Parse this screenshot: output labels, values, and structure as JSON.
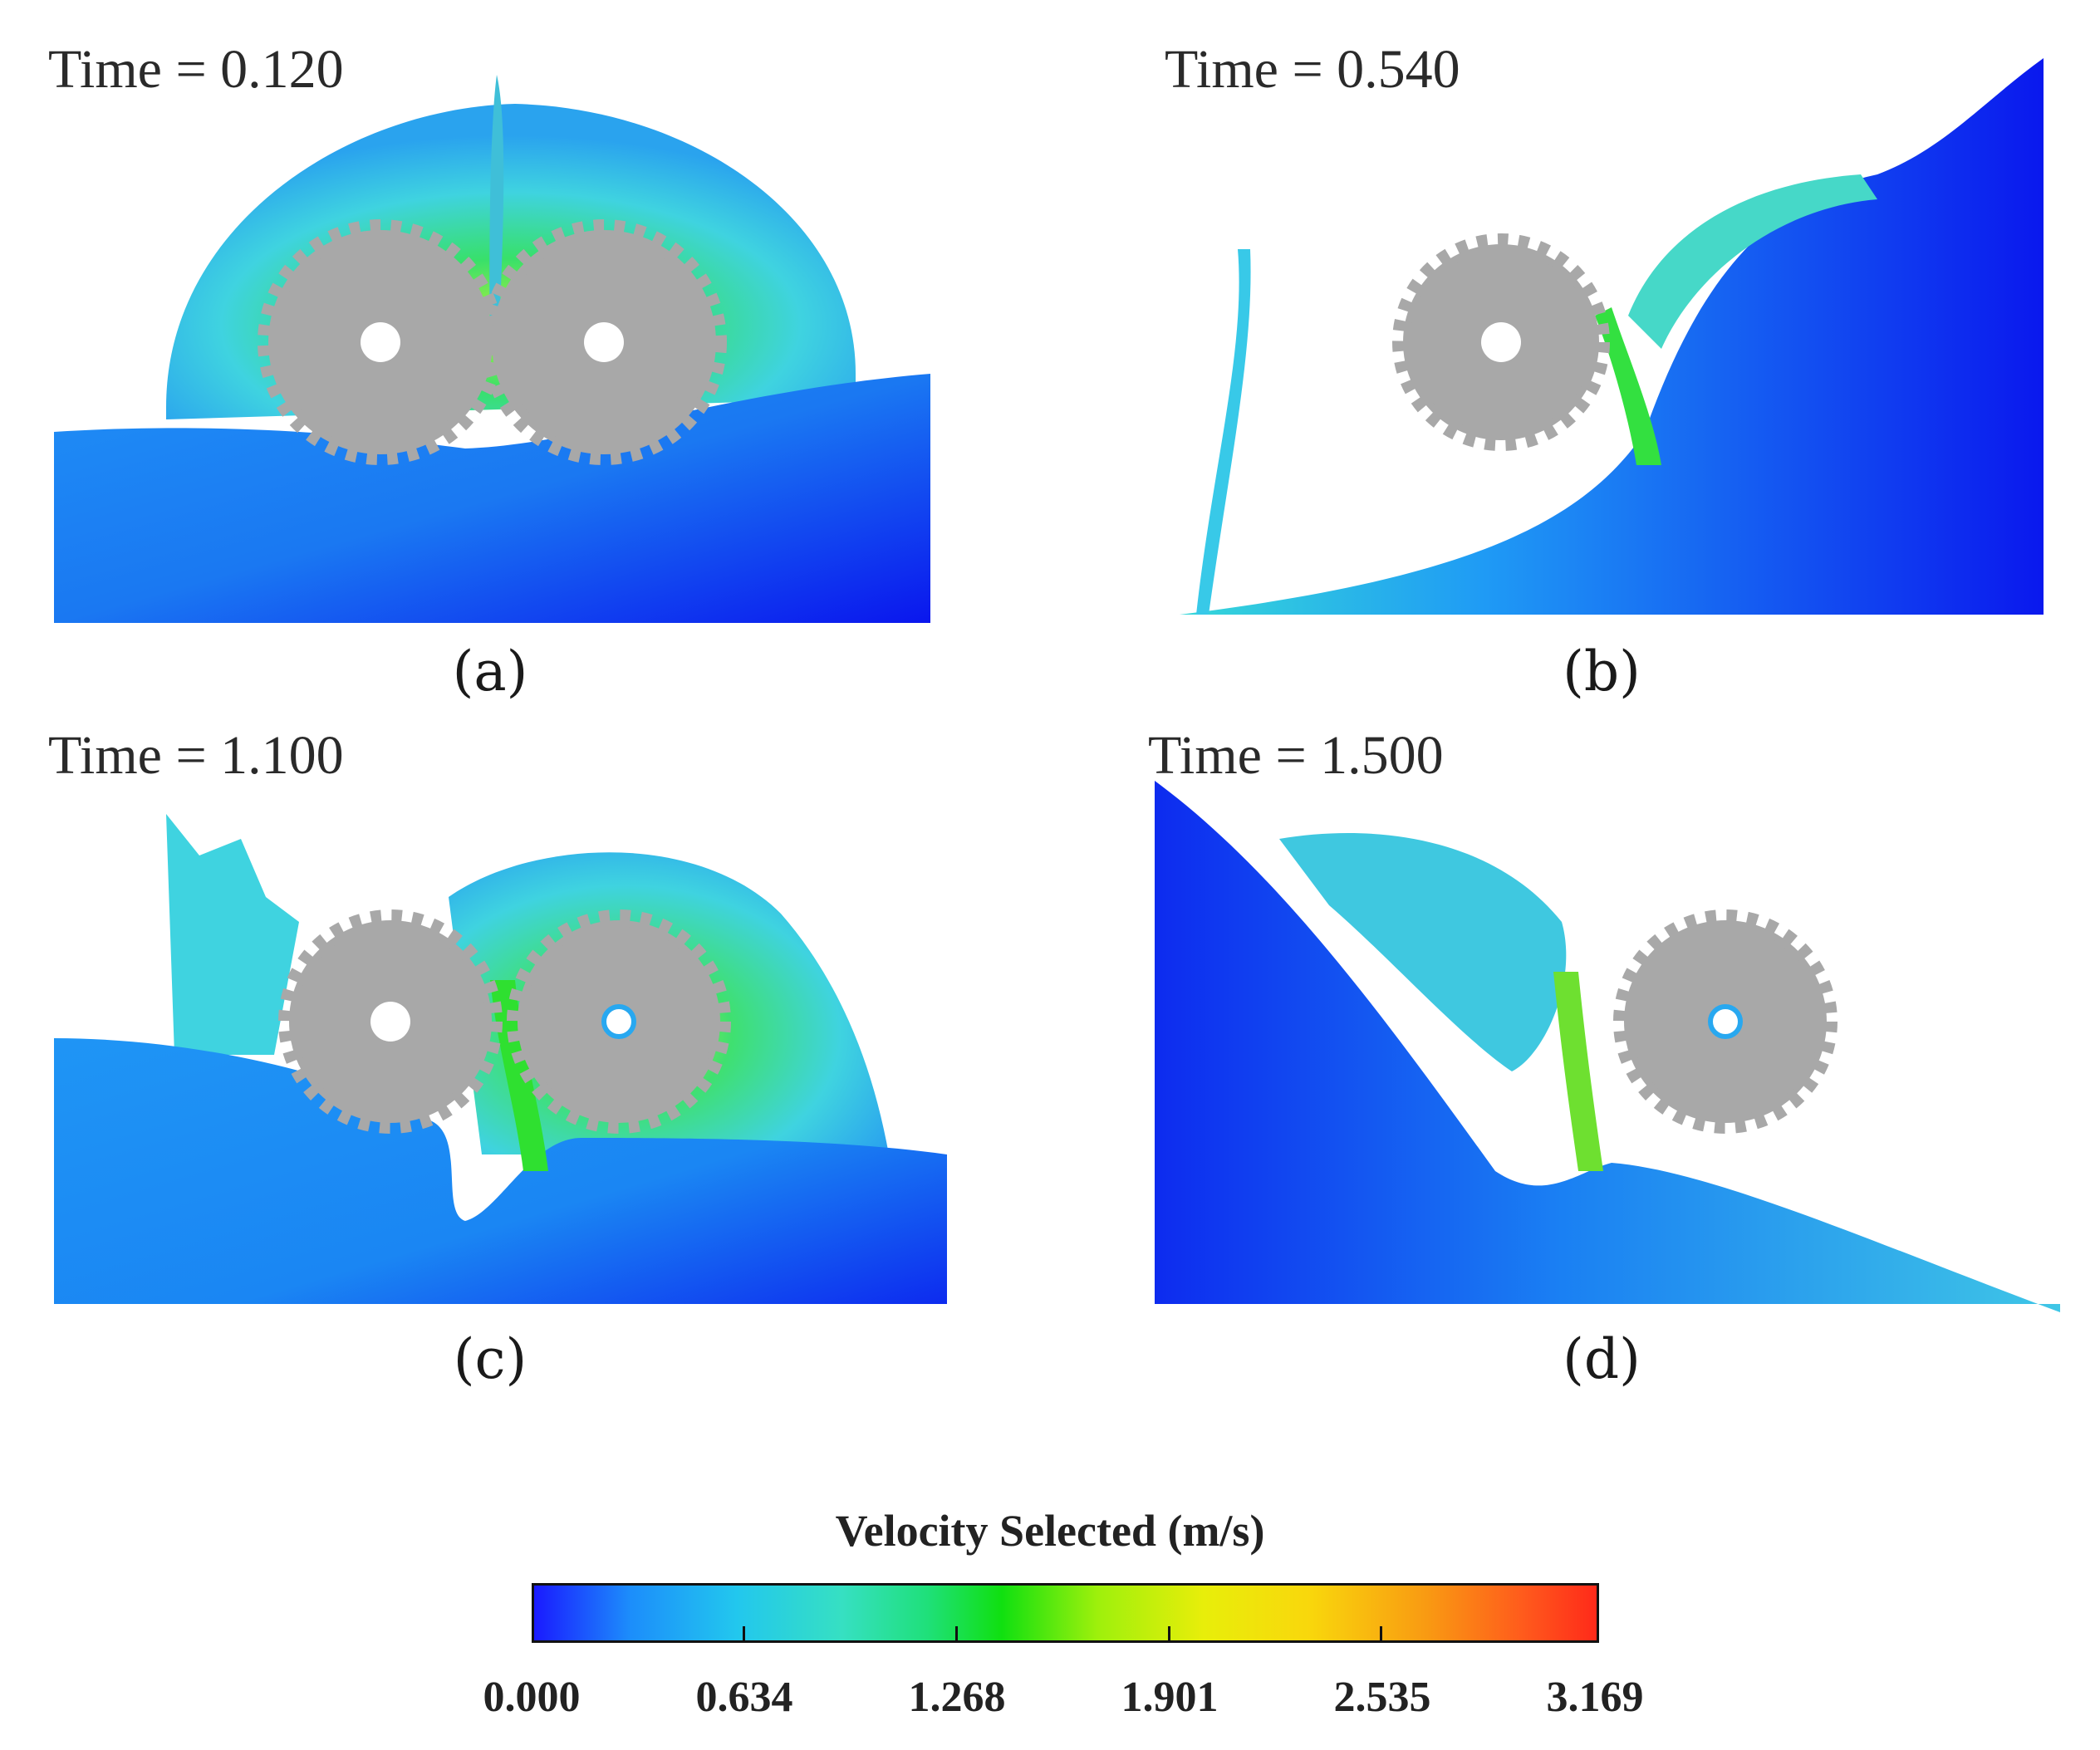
{
  "panels": [
    {
      "time_label": "Time = 0.120",
      "caption": "(a)"
    },
    {
      "time_label": "Time = 0.540",
      "caption": "(b)"
    },
    {
      "time_label": "Time = 1.100",
      "caption": "(c)"
    },
    {
      "time_label": "Time = 1.500",
      "caption": "(d)"
    }
  ],
  "colorbar": {
    "title": "Velocity Selected (m/s)",
    "ticks": [
      "0.000",
      "0.634",
      "1.268",
      "1.901",
      "2.535",
      "3.169"
    ],
    "min": 0.0,
    "max": 3.169,
    "colors": [
      "#1a1aff",
      "#1c8dfb",
      "#22c7ee",
      "#36e0c2",
      "#10e010",
      "#e8ee0a",
      "#f99a12",
      "#ff2a1a"
    ]
  },
  "colors": {
    "gear": "#a8a8a8",
    "deep_fluid": "#0a1ef0",
    "fluid_mid": "#1a8ef5",
    "fluid_light": "#3fd3e0",
    "fluid_green": "#2fe05a"
  }
}
